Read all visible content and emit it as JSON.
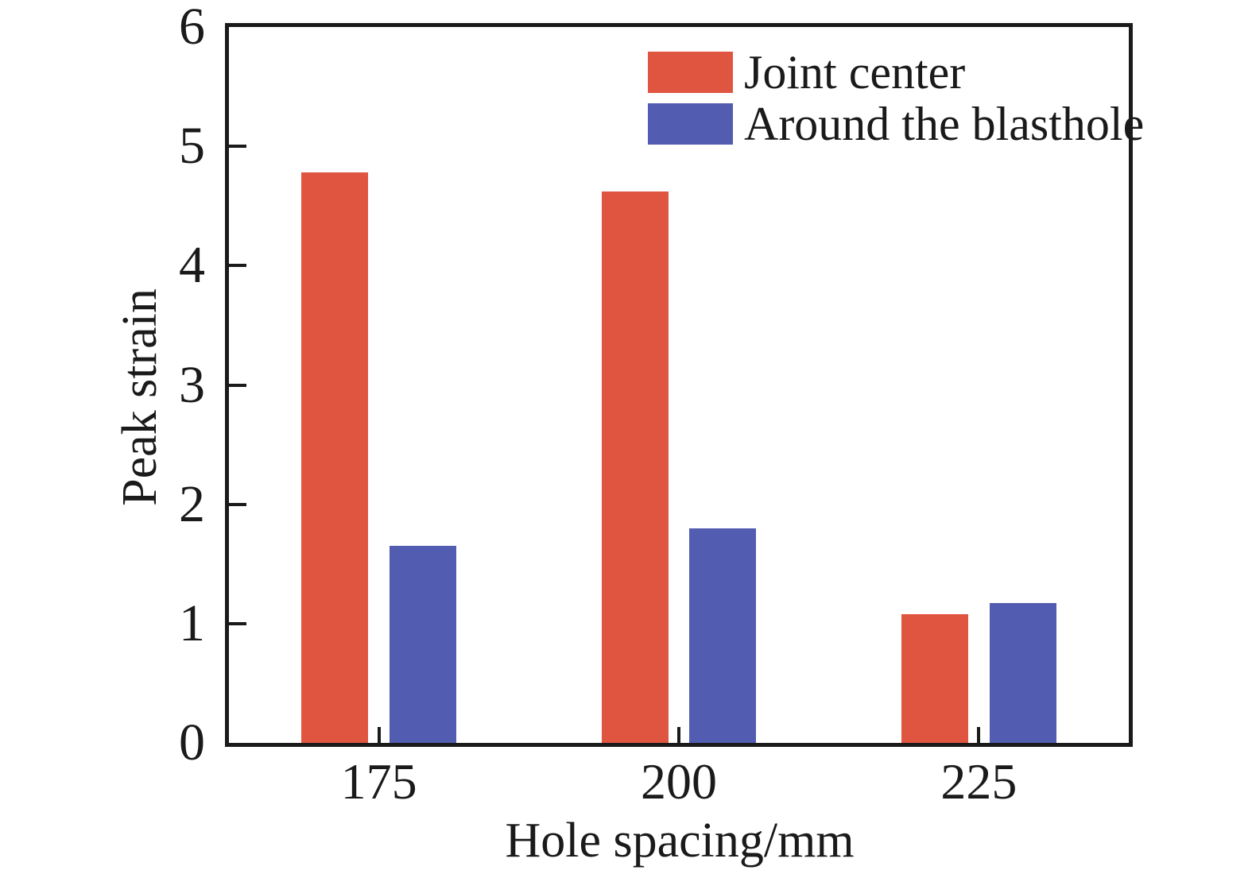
{
  "figure": {
    "background": "#ffffff",
    "text_color": "#1a1a1a",
    "axis_color": "#1a1a1a"
  },
  "chart_data": {
    "type": "bar",
    "title": "",
    "categories": [
      "175",
      "200",
      "225"
    ],
    "series": [
      {
        "name": "Joint center",
        "color": "#e0553f",
        "values": [
          4.78,
          4.62,
          1.08
        ]
      },
      {
        "name": "Around the blasthole",
        "color": "#525cb0",
        "values": [
          1.65,
          1.8,
          1.17
        ]
      }
    ],
    "xlabel": "Hole spacing/mm",
    "ylabel": "Peak strain",
    "ylim": [
      0,
      6
    ],
    "yticks": [
      0,
      1,
      2,
      3,
      4,
      5,
      6
    ],
    "grid": false,
    "legend_position": "top-right"
  }
}
